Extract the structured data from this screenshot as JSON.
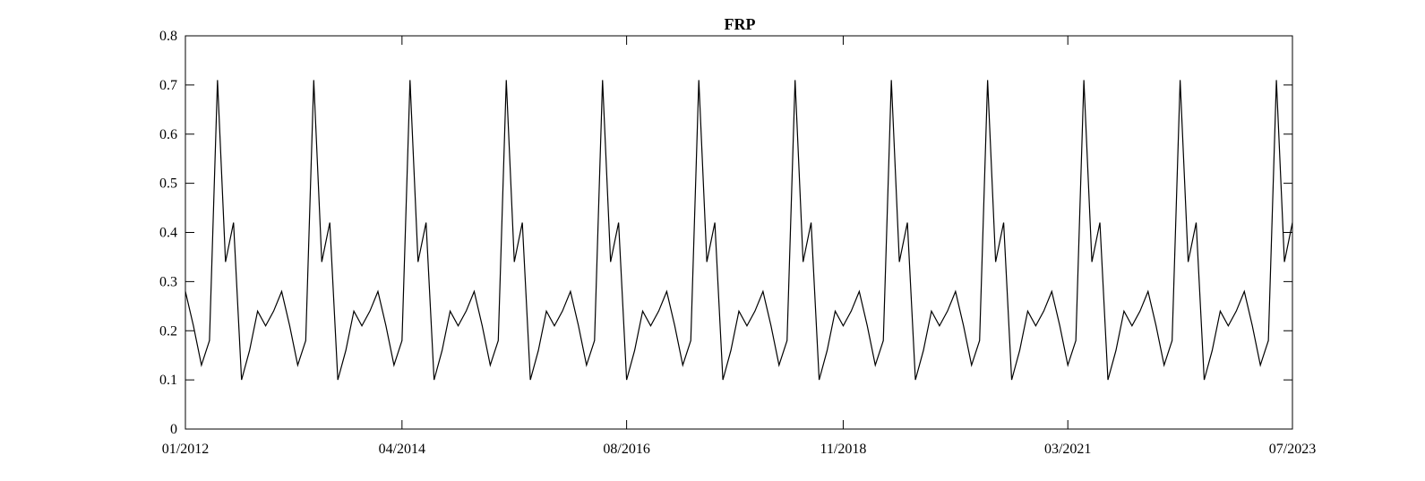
{
  "chart_data": {
    "type": "line",
    "title": "FRP",
    "xlabel": "",
    "ylabel": "",
    "x_start": "01/2012",
    "x_end": "07/2023",
    "frequency": "monthly",
    "xlim": [
      "01/2012",
      "07/2023"
    ],
    "ylim": [
      0,
      0.8
    ],
    "x_ticks": [
      "01/2012",
      "04/2014",
      "08/2016",
      "11/2018",
      "03/2021",
      "07/2023"
    ],
    "y_ticks": [
      "0",
      "0.1",
      "0.2",
      "0.3",
      "0.4",
      "0.5",
      "0.6",
      "0.7",
      "0.8"
    ],
    "grid": false,
    "legend": "none",
    "line_color": "#000000",
    "series": [
      {
        "values": [
          0.28,
          0.21,
          0.13,
          0.18,
          0.71,
          0.34,
          0.42,
          0.1,
          0.16,
          0.24,
          0.21,
          0.24,
          0.28,
          0.21,
          0.13,
          0.18,
          0.71,
          0.34,
          0.42,
          0.1,
          0.16,
          0.24,
          0.21,
          0.24,
          0.28,
          0.21,
          0.13,
          0.18,
          0.71,
          0.34,
          0.42,
          0.1,
          0.16,
          0.24,
          0.21,
          0.24,
          0.28,
          0.21,
          0.13,
          0.18,
          0.71,
          0.34,
          0.42,
          0.1,
          0.16,
          0.24,
          0.21,
          0.24,
          0.28,
          0.21,
          0.13,
          0.18,
          0.71,
          0.34,
          0.42,
          0.1,
          0.16,
          0.24,
          0.21,
          0.24,
          0.28,
          0.21,
          0.13,
          0.18,
          0.71,
          0.34,
          0.42,
          0.1,
          0.16,
          0.24,
          0.21,
          0.24,
          0.28,
          0.21,
          0.13,
          0.18,
          0.71,
          0.34,
          0.42,
          0.1,
          0.16,
          0.24,
          0.21,
          0.24,
          0.28,
          0.21,
          0.13,
          0.18,
          0.71,
          0.34,
          0.42,
          0.1,
          0.16,
          0.24,
          0.21,
          0.24,
          0.28,
          0.21,
          0.13,
          0.18,
          0.71,
          0.34,
          0.42,
          0.1,
          0.16,
          0.24,
          0.21,
          0.24,
          0.28,
          0.21,
          0.13,
          0.18,
          0.71,
          0.34,
          0.42,
          0.1,
          0.16,
          0.24,
          0.21,
          0.24,
          0.28,
          0.21,
          0.13,
          0.18,
          0.71,
          0.34,
          0.42,
          0.1,
          0.16,
          0.24,
          0.21,
          0.24,
          0.28,
          0.21,
          0.13,
          0.18,
          0.71,
          0.34,
          0.42
        ]
      }
    ]
  }
}
